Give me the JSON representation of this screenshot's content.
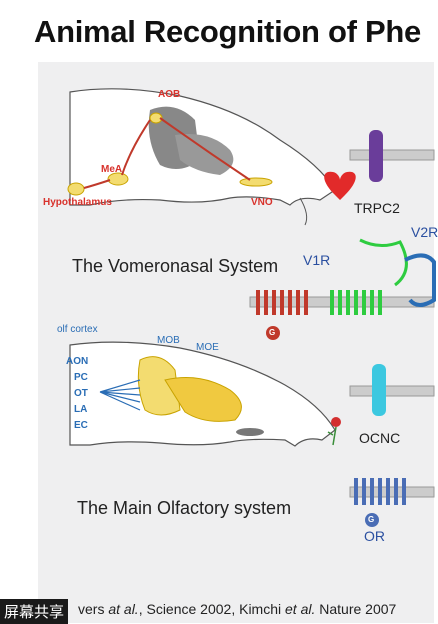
{
  "slide": {
    "title": "Animal Recognition of Phe",
    "vomeronasal": {
      "heading": "The Vomeronasal System",
      "labels": {
        "aob": "AOB",
        "mea": "MeA",
        "hypothalamus": "Hypothalamus",
        "vno": "VNO"
      }
    },
    "olfactory": {
      "heading": "The Main Olfactory system",
      "labels": {
        "olf_cortex": "olf cortex",
        "mob": "MOB",
        "moe": "MOE"
      },
      "cortex_regions": [
        "AON",
        "PC",
        "OT",
        "LA",
        "EC"
      ]
    },
    "proteins": {
      "trpc2": "TRPC2",
      "v1r": "V1R",
      "v2r": "V2R",
      "ocnc": "OCNC",
      "or": "OR",
      "g": "G"
    },
    "citation": {
      "prefix": "vers ",
      "etal1": "at al.",
      "mid": ", Science 2002, Kimchi ",
      "etal2": "et al.",
      "suffix": " Nature 2007"
    }
  },
  "overlay": {
    "screen_share_label": "屏幕共享"
  },
  "colors": {
    "red_label": "#d8322c",
    "blue_label": "#2a6db5",
    "trpc2": "#6a3d9a",
    "ocnc": "#3cc8e0",
    "v1r": "#c0392b",
    "v2r": "#2ecc40",
    "or": "#4a6db5"
  }
}
